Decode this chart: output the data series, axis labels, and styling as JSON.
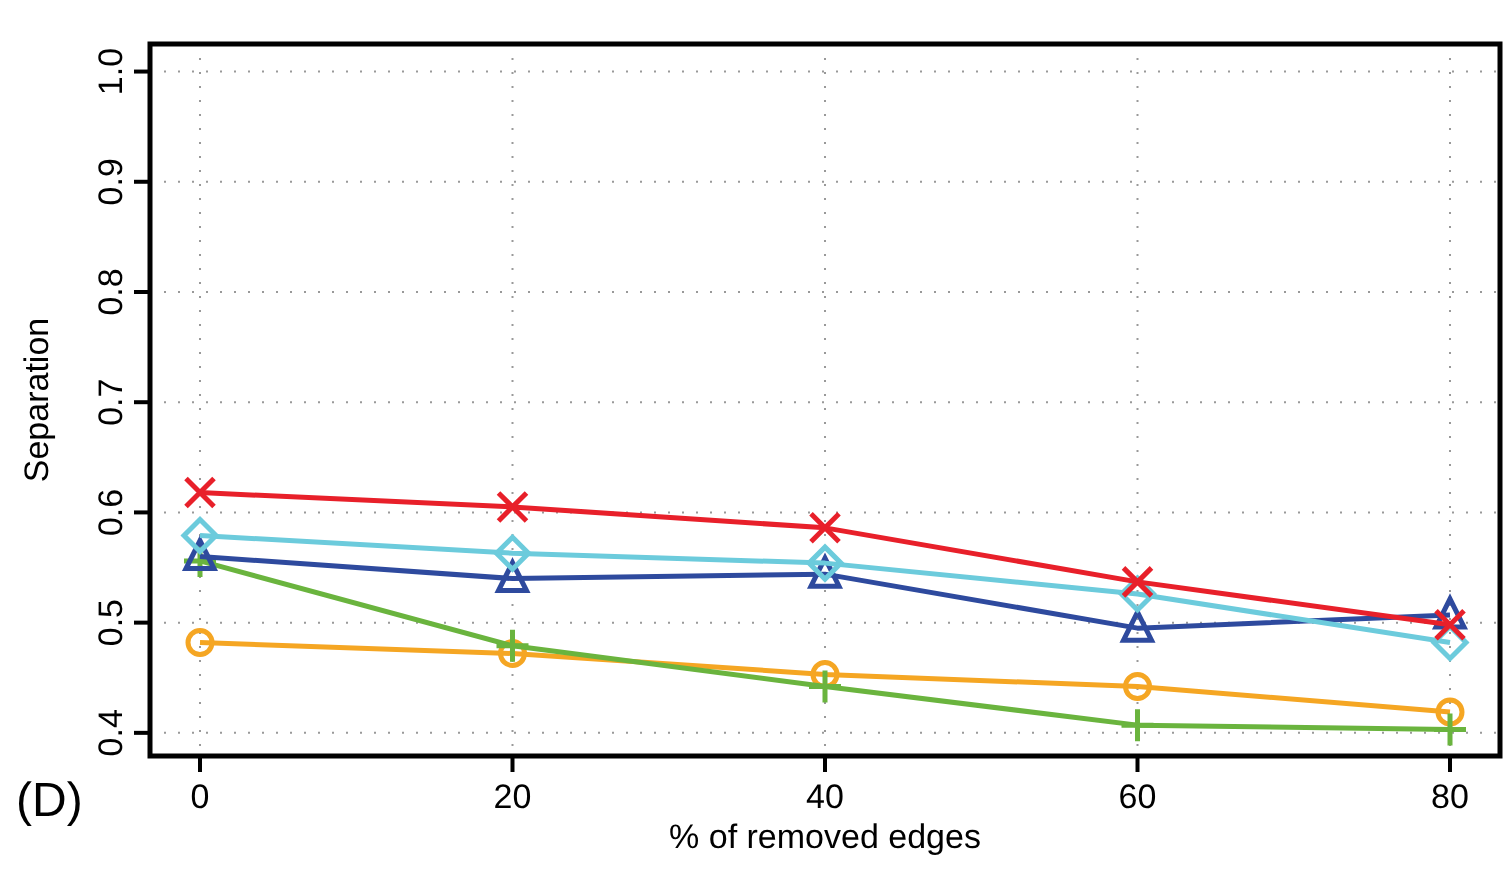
{
  "chart_data": {
    "type": "line",
    "xlabel": "% of removed edges",
    "ylabel": "Separation",
    "annotations": [
      "(D)"
    ],
    "x": [
      0,
      20,
      40,
      60,
      80
    ],
    "xlim": [
      -3.2,
      83.2
    ],
    "xticks": [
      0,
      20,
      40,
      60,
      80
    ],
    "ylim": [
      0.379,
      1.025
    ],
    "yticks": [
      {
        "value": 0.4,
        "label": "0.4"
      },
      {
        "value": 0.5,
        "label": "0.5"
      },
      {
        "value": 0.6,
        "label": "0.6"
      },
      {
        "value": 0.7,
        "label": "0.7"
      },
      {
        "value": 0.8,
        "label": "0.8"
      },
      {
        "value": 0.9,
        "label": "0.9"
      },
      {
        "value": 1.0,
        "label": "1.0"
      }
    ],
    "grid": true,
    "line_style": "solid",
    "series": [
      {
        "color": "#e8202a",
        "marker": "cross",
        "values": [
          0.618,
          0.605,
          0.586,
          0.537,
          0.498
        ]
      },
      {
        "color": "#6ccbdc",
        "marker": "diamond",
        "values": [
          0.579,
          0.563,
          0.554,
          0.526,
          0.482
        ]
      },
      {
        "color": "#2e4a9e",
        "marker": "triangle",
        "values": [
          0.56,
          0.54,
          0.544,
          0.495,
          0.507
        ]
      },
      {
        "color": "#6ab43e",
        "marker": "plus",
        "values": [
          0.556,
          0.479,
          0.442,
          0.407,
          0.403
        ]
      },
      {
        "color": "#f5a623",
        "marker": "circle",
        "values": [
          0.482,
          0.472,
          0.453,
          0.442,
          0.419
        ]
      }
    ]
  }
}
